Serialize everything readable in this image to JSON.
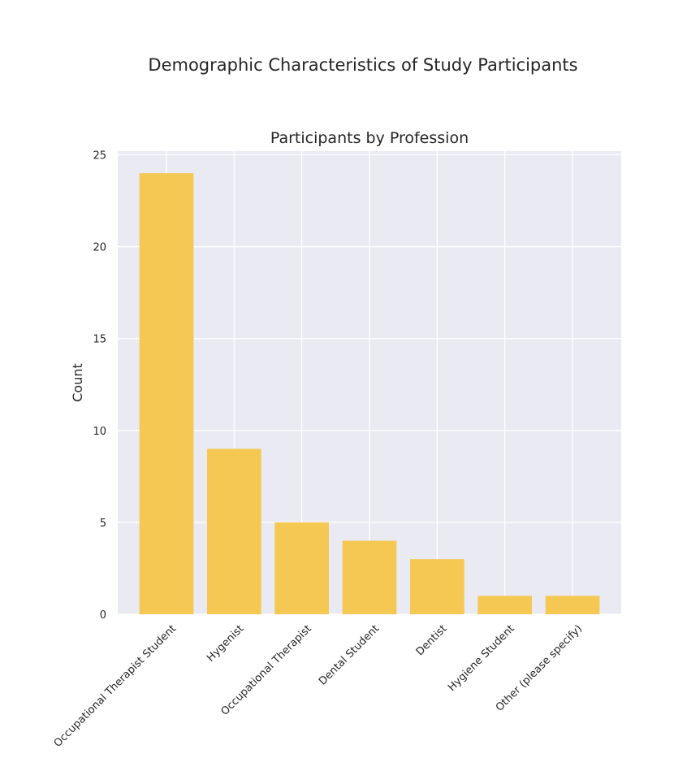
{
  "figure": {
    "suptitle": "Demographic Characteristics of Study Participants"
  },
  "chart_data": {
    "type": "bar",
    "title": "Participants by Profession",
    "xlabel": "",
    "ylabel": "Count",
    "categories": [
      "Occupational Therapist Student",
      "Hygenist",
      "Occupational Therapist",
      "Dental Student",
      "Dentist",
      "Hygiene Student",
      "Other (please specify)"
    ],
    "values": [
      24,
      9,
      5,
      4,
      3,
      1,
      1
    ],
    "ylim": [
      0,
      25.2
    ],
    "yticks": [
      0,
      5,
      10,
      15,
      20,
      25
    ],
    "grid": true,
    "legend": "none",
    "colors": {
      "bar": "#F4C852",
      "axes_background": "#EAEAF2",
      "grid": "#FFFFFF",
      "text": "#262626"
    }
  }
}
